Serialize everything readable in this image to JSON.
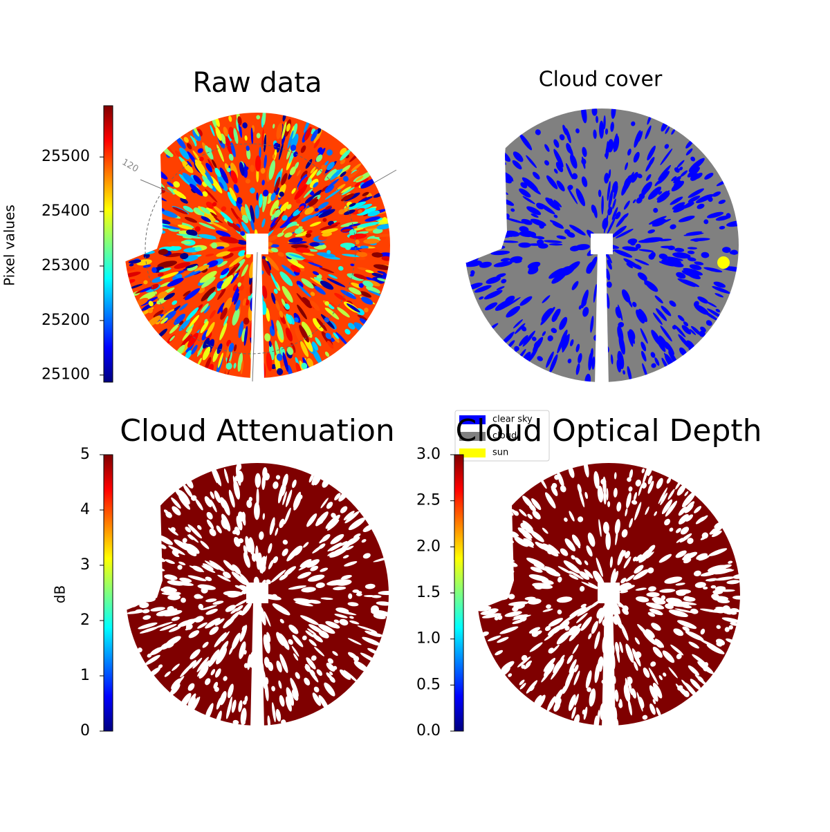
{
  "chart_data": [
    {
      "type": "image",
      "title": "Raw data",
      "colormap": "jet",
      "colorbar_label": "Pixel values",
      "ylim": [
        25087,
        25594
      ],
      "yticks": [
        25100,
        25200,
        25300,
        25400,
        25500
      ],
      "annotation": "120"
    },
    {
      "type": "image",
      "title": "Cloud cover",
      "legend": [
        {
          "name": "clear sky",
          "color": "#0000ff"
        },
        {
          "name": "cloud",
          "color": "#808080"
        },
        {
          "name": "sun",
          "color": "#ffff00"
        }
      ]
    },
    {
      "type": "image",
      "title": "Cloud Attenuation",
      "colormap": "jet",
      "colorbar_label": "dB",
      "ylim": [
        0,
        5
      ],
      "yticks": [
        0,
        1,
        2,
        3,
        4,
        5
      ]
    },
    {
      "type": "image",
      "title": "Cloud Optical Depth",
      "colormap": "jet",
      "ylim": [
        0,
        3
      ],
      "yticks": [
        {
          "value": 0,
          "label": "0.0"
        },
        0.5,
        {
          "value": 1,
          "label": "1.0"
        },
        1.5,
        {
          "value": 2,
          "label": "2.0"
        },
        2.5,
        {
          "value": 3,
          "label": "3.0"
        }
      ]
    }
  ]
}
